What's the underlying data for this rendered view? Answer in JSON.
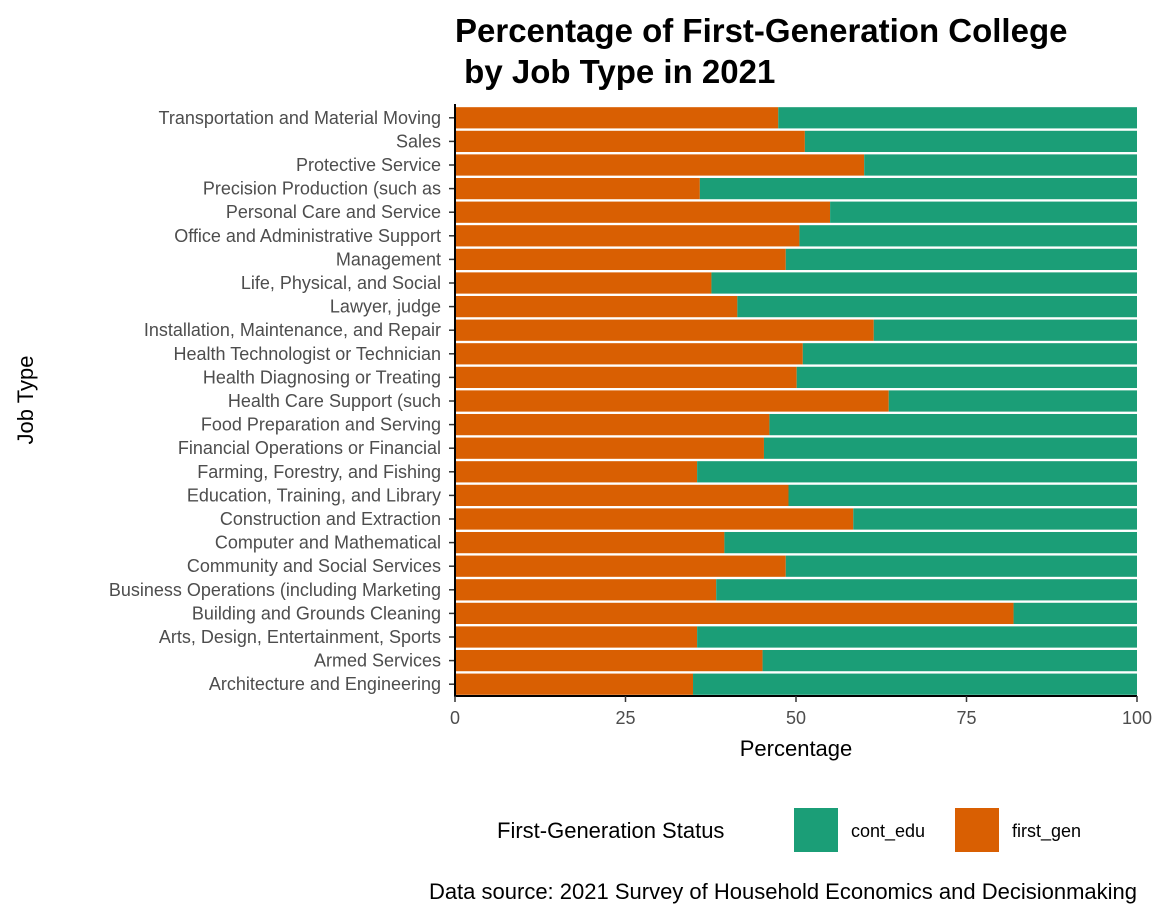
{
  "chart_data": {
    "type": "bar",
    "orientation": "horizontal",
    "stacked": true,
    "title_line1": "Percentage of First-Generation College",
    "title_line2": " by Job Type in 2021",
    "xlabel": "Percentage",
    "ylabel": "Job Type",
    "xlim": [
      0,
      100
    ],
    "x_ticks": [
      "0",
      "25",
      "50",
      "75",
      "100"
    ],
    "categories": [
      "Transportation and Material Moving",
      "Sales",
      "Protective Service",
      "Precision Production (such as",
      "Personal Care and Service",
      "Office and Administrative Support",
      "Management",
      "Life, Physical, and Social",
      "Lawyer, judge",
      "Installation, Maintenance, and Repair",
      "Health Technologist or Technician",
      "Health Diagnosing or Treating",
      "Health Care Support (such",
      "Food Preparation and Serving",
      "Financial Operations or Financial",
      "Farming, Forestry, and Fishing",
      "Education, Training, and Library",
      "Construction and Extraction",
      "Computer and Mathematical",
      "Community and Social Services",
      "Business Operations (including Marketing",
      "Building and Grounds Cleaning",
      "Arts, Design, Entertainment, Sports",
      "Armed Services",
      "Architecture and Engineering"
    ],
    "series": [
      {
        "name": "first_gen",
        "color": "#D95F02",
        "values": [
          47.4,
          51.3,
          60.0,
          35.9,
          55.0,
          50.5,
          48.5,
          37.6,
          41.4,
          61.4,
          51.0,
          50.1,
          63.6,
          46.1,
          45.3,
          35.5,
          48.9,
          58.4,
          39.5,
          48.5,
          38.3,
          81.9,
          35.5,
          45.1,
          34.9
        ]
      },
      {
        "name": "cont_edu",
        "color": "#1B9E77",
        "values": [
          52.6,
          48.7,
          40.0,
          64.1,
          45.0,
          49.5,
          51.5,
          62.4,
          58.6,
          38.6,
          49.0,
          49.9,
          36.4,
          53.9,
          54.7,
          64.5,
          51.1,
          41.6,
          60.5,
          51.5,
          61.7,
          18.1,
          64.5,
          54.9,
          65.1
        ]
      }
    ],
    "legend": {
      "title": "First-Generation Status",
      "position": "bottom",
      "items": [
        {
          "label": "cont_edu",
          "color": "#1B9E77"
        },
        {
          "label": "first_gen",
          "color": "#D95F02"
        }
      ]
    },
    "caption": "Data source: 2021 Survey of Household Economics and Decisionmaking",
    "grid": false
  }
}
